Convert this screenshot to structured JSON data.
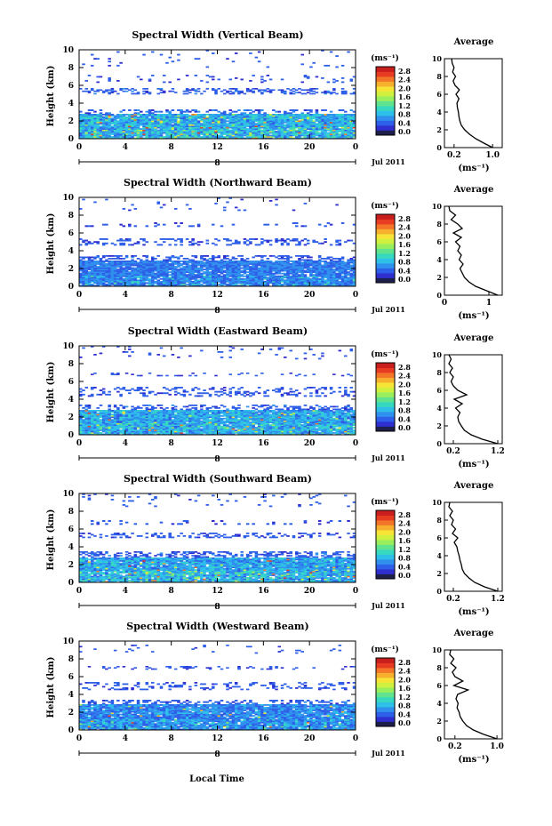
{
  "figure": {
    "xlabel": "Local Time",
    "date_label": "Jul 2011",
    "ylabel": "Height (km)",
    "unit_label": "(ms⁻¹)",
    "average_title": "Average",
    "average_xlabel": "(ms⁻¹)",
    "day_marker": "8",
    "time_ticks": [
      "0",
      "4",
      "8",
      "12",
      "16",
      "20",
      "0"
    ],
    "height_ticks": [
      "0",
      "2",
      "4",
      "6",
      "8",
      "10"
    ],
    "colorbar_ticks": [
      "0.0",
      "0.4",
      "0.8",
      "1.2",
      "1.6",
      "2.0",
      "2.4",
      "2.8"
    ],
    "colorbar_colors": [
      "#1e1e4a",
      "#2f2fd0",
      "#2e5fe8",
      "#2f90ee",
      "#2fc0ea",
      "#36d8c0",
      "#5fe38f",
      "#98ee5d",
      "#d0f040",
      "#f6e536",
      "#f7b02e",
      "#f37628",
      "#e83c22",
      "#c81e1e"
    ]
  },
  "chart_data": [
    {
      "type": "heatmap",
      "title": "Spectral Width (Vertical Beam)",
      "xlim": [
        0,
        24
      ],
      "ylim": [
        0,
        10
      ],
      "zlim": [
        0,
        3
      ],
      "layers": [
        {
          "y": [
            0.0,
            2.8
          ],
          "density": 0.97,
          "level": [
            0.5,
            1.2
          ],
          "hot": 0.05
        },
        {
          "y": [
            2.8,
            3.3
          ],
          "density": 0.35,
          "level": [
            0.3,
            0.7
          ],
          "hot": 0
        },
        {
          "y": [
            5.0,
            5.7
          ],
          "density": 0.35,
          "level": [
            0.3,
            0.6
          ],
          "hot": 0
        },
        {
          "y": [
            6.3,
            7.2
          ],
          "density": 0.1,
          "level": [
            0.3,
            0.5
          ],
          "hot": 0
        },
        {
          "y": [
            8.0,
            10.0
          ],
          "density": 0.04,
          "level": [
            0.3,
            0.5
          ],
          "hot": 0
        }
      ],
      "profile": {
        "height": [
          0,
          0.5,
          1,
          1.5,
          2,
          2.5,
          3,
          3.5,
          4,
          4.5,
          5,
          5.5,
          6,
          6.5,
          7,
          7.5,
          8,
          8.5,
          9,
          9.5,
          10
        ],
        "value": [
          1.0,
          0.82,
          0.65,
          0.52,
          0.42,
          0.35,
          0.32,
          0.3,
          0.29,
          0.27,
          0.26,
          0.3,
          0.24,
          0.31,
          0.22,
          0.18,
          0.23,
          0.17,
          0.2,
          0.16,
          0.15
        ],
        "xlim": [
          0,
          1.2
        ],
        "xticks": [
          "0.2",
          "1.0"
        ],
        "xtick_values": [
          0.2,
          1.0
        ]
      }
    },
    {
      "type": "heatmap",
      "title": "Spectral Width (Northward Beam)",
      "xlim": [
        0,
        24
      ],
      "ylim": [
        0,
        10
      ],
      "zlim": [
        0,
        3
      ],
      "layers": [
        {
          "y": [
            0.0,
            2.9
          ],
          "density": 0.95,
          "level": [
            0.4,
            0.8
          ],
          "hot": 0.0
        },
        {
          "y": [
            2.9,
            3.5
          ],
          "density": 0.4,
          "level": [
            0.3,
            0.6
          ],
          "hot": 0
        },
        {
          "y": [
            4.6,
            5.4
          ],
          "density": 0.3,
          "level": [
            0.3,
            0.5
          ],
          "hot": 0
        },
        {
          "y": [
            6.7,
            7.2
          ],
          "density": 0.15,
          "level": [
            0.3,
            0.5
          ],
          "hot": 0
        },
        {
          "y": [
            8.5,
            10.0
          ],
          "density": 0.03,
          "level": [
            0.3,
            0.5
          ],
          "hot": 0
        }
      ],
      "profile": {
        "height": [
          0,
          0.5,
          1,
          1.5,
          2,
          2.5,
          3,
          3.5,
          4,
          4.5,
          5,
          5.5,
          6,
          6.5,
          7,
          7.5,
          8,
          8.5,
          9,
          9.5,
          10
        ],
        "value": [
          1.2,
          0.95,
          0.7,
          0.55,
          0.45,
          0.4,
          0.35,
          0.42,
          0.33,
          0.38,
          0.3,
          0.35,
          0.25,
          0.38,
          0.2,
          0.4,
          0.3,
          0.15,
          0.25,
          0.12,
          0.1
        ],
        "xlim": [
          0,
          1.3
        ],
        "xticks": [
          "0",
          "1"
        ],
        "xtick_values": [
          0,
          1
        ]
      }
    },
    {
      "type": "heatmap",
      "title": "Spectral Width (Eastward Beam)",
      "xlim": [
        0,
        24
      ],
      "ylim": [
        0,
        10
      ],
      "zlim": [
        0,
        3
      ],
      "layers": [
        {
          "y": [
            0.0,
            2.8
          ],
          "density": 0.97,
          "level": [
            0.5,
            1.1
          ],
          "hot": 0.03
        },
        {
          "y": [
            2.8,
            3.4
          ],
          "density": 0.35,
          "level": [
            0.3,
            0.6
          ],
          "hot": 0
        },
        {
          "y": [
            4.3,
            5.4
          ],
          "density": 0.3,
          "level": [
            0.3,
            0.5
          ],
          "hot": 0
        },
        {
          "y": [
            6.6,
            7.0
          ],
          "density": 0.12,
          "level": [
            0.3,
            0.5
          ],
          "hot": 0
        },
        {
          "y": [
            8.5,
            10.0
          ],
          "density": 0.04,
          "level": [
            0.3,
            0.5
          ],
          "hot": 0
        }
      ],
      "profile": {
        "height": [
          0,
          0.5,
          1,
          1.5,
          2,
          2.5,
          3,
          3.5,
          4,
          4.5,
          5,
          5.5,
          6,
          6.5,
          7,
          7.5,
          8,
          8.5,
          9,
          9.5,
          10
        ],
        "value": [
          1.2,
          0.85,
          0.6,
          0.45,
          0.38,
          0.32,
          0.3,
          0.35,
          0.25,
          0.4,
          0.22,
          0.5,
          0.3,
          0.2,
          0.15,
          0.2,
          0.12,
          0.18,
          0.1,
          0.15,
          0.1
        ],
        "xlim": [
          0,
          1.3
        ],
        "xticks": [
          "0.2",
          "1.2"
        ],
        "xtick_values": [
          0.2,
          1.2
        ]
      }
    },
    {
      "type": "heatmap",
      "title": "Spectral Width (Southward Beam)",
      "xlim": [
        0,
        24
      ],
      "ylim": [
        0,
        10
      ],
      "zlim": [
        0,
        3
      ],
      "layers": [
        {
          "y": [
            0.0,
            2.8
          ],
          "density": 0.96,
          "level": [
            0.5,
            1.1
          ],
          "hot": 0.04
        },
        {
          "y": [
            2.8,
            3.5
          ],
          "density": 0.45,
          "level": [
            0.3,
            0.6
          ],
          "hot": 0
        },
        {
          "y": [
            5.0,
            5.6
          ],
          "density": 0.35,
          "level": [
            0.3,
            0.5
          ],
          "hot": 0
        },
        {
          "y": [
            6.5,
            7.0
          ],
          "density": 0.1,
          "level": [
            0.3,
            0.5
          ],
          "hot": 0
        },
        {
          "y": [
            8.5,
            10.0
          ],
          "density": 0.05,
          "level": [
            0.3,
            0.5
          ],
          "hot": 0
        }
      ],
      "profile": {
        "height": [
          0,
          0.5,
          1,
          1.5,
          2,
          2.5,
          3,
          3.5,
          4,
          4.5,
          5,
          5.5,
          6,
          6.5,
          7,
          7.5,
          8,
          8.5,
          9,
          9.5,
          10
        ],
        "value": [
          1.2,
          0.9,
          0.68,
          0.55,
          0.45,
          0.4,
          0.38,
          0.35,
          0.33,
          0.3,
          0.28,
          0.22,
          0.3,
          0.18,
          0.25,
          0.16,
          0.2,
          0.12,
          0.18,
          0.1,
          0.12
        ],
        "xlim": [
          0,
          1.3
        ],
        "xticks": [
          "0.2",
          "1.2"
        ],
        "xtick_values": [
          0.2,
          1.2
        ]
      }
    },
    {
      "type": "heatmap",
      "title": "Spectral Width (Westward Beam)",
      "xlim": [
        0,
        24
      ],
      "ylim": [
        0,
        10
      ],
      "zlim": [
        0,
        3
      ],
      "layers": [
        {
          "y": [
            0.0,
            2.9
          ],
          "density": 0.95,
          "level": [
            0.4,
            0.9
          ],
          "hot": 0.02
        },
        {
          "y": [
            2.9,
            3.4
          ],
          "density": 0.35,
          "level": [
            0.3,
            0.6
          ],
          "hot": 0
        },
        {
          "y": [
            4.5,
            5.4
          ],
          "density": 0.25,
          "level": [
            0.3,
            0.5
          ],
          "hot": 0
        },
        {
          "y": [
            6.8,
            7.2
          ],
          "density": 0.2,
          "level": [
            0.3,
            0.5
          ],
          "hot": 0
        },
        {
          "y": [
            8.6,
            9.6
          ],
          "density": 0.05,
          "level": [
            0.3,
            0.5
          ],
          "hot": 0
        }
      ],
      "profile": {
        "height": [
          0,
          0.5,
          1,
          1.5,
          2,
          2.5,
          3,
          3.5,
          4,
          4.5,
          5,
          5.5,
          6,
          6.5,
          7,
          7.5,
          8,
          8.5,
          9,
          9.5,
          10
        ],
        "value": [
          1.0,
          0.75,
          0.55,
          0.42,
          0.35,
          0.3,
          0.28,
          0.24,
          0.26,
          0.22,
          0.25,
          0.45,
          0.18,
          0.35,
          0.2,
          0.15,
          0.22,
          0.12,
          0.18,
          0.1,
          0.12
        ],
        "xlim": [
          0,
          1.1
        ],
        "xticks": [
          "0.2",
          "1.0"
        ],
        "xtick_values": [
          0.2,
          1.0
        ]
      }
    }
  ]
}
